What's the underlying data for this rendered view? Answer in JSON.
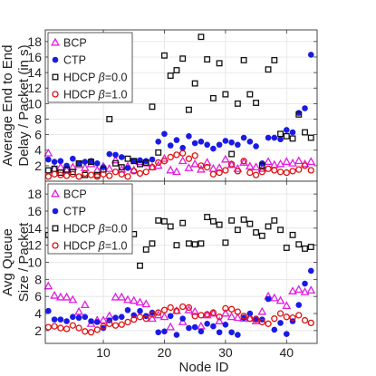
{
  "chart_data": [
    {
      "type": "scatter",
      "ylabel_lines": [
        "Average End to End",
        "Delay / Packet (in s)"
      ],
      "xlabel": "",
      "xlim": [
        0.5,
        45
      ],
      "ylim": [
        0,
        19.5
      ],
      "yticks": [
        2,
        4,
        6,
        8,
        10,
        12,
        14,
        16,
        18
      ],
      "xticks": [
        10,
        20,
        30,
        40
      ],
      "grid": true,
      "legend_position": "top-left",
      "series": [
        {
          "name": "BCP",
          "marker": "triangle",
          "color": "#e020e0",
          "x": [
            1,
            2,
            3,
            4,
            5,
            6,
            7,
            8,
            9,
            10,
            11,
            12,
            13,
            14,
            15,
            16,
            17,
            18,
            19,
            20,
            21,
            22,
            23,
            24,
            25,
            26,
            27,
            28,
            29,
            30,
            31,
            32,
            33,
            34,
            35,
            36,
            37,
            38,
            39,
            40,
            41,
            42,
            43,
            44
          ],
          "y": [
            3.6,
            1.6,
            1.8,
            1.4,
            1.8,
            2.1,
            1.7,
            2.2,
            1.4,
            1.9,
            1.6,
            2.7,
            1.5,
            1.9,
            1.4,
            2.5,
            2.3,
            1.8,
            2.0,
            2.9,
            1.4,
            1.2,
            2.6,
            1.7,
            2.2,
            1.5,
            2.4,
            1.6,
            1.7,
            2.8,
            2.1,
            1.6,
            2.4,
            1.9,
            1.8,
            1.6,
            2.5,
            2.1,
            2.2,
            2.5,
            2.3,
            2.6,
            2.2,
            2.5
          ]
        },
        {
          "name": "CTP",
          "marker": "circle-filled",
          "color": "#1a1ae6",
          "x": [
            1,
            2,
            3,
            4,
            5,
            6,
            7,
            8,
            9,
            10,
            11,
            12,
            13,
            14,
            15,
            16,
            17,
            18,
            19,
            20,
            21,
            22,
            23,
            24,
            25,
            26,
            27,
            28,
            29,
            30,
            31,
            32,
            33,
            34,
            35,
            36,
            37,
            38,
            39,
            40,
            41,
            42,
            43,
            44
          ],
          "y": [
            2.8,
            2.5,
            2.6,
            2.0,
            2.9,
            2.3,
            2.5,
            2.6,
            2.3,
            1.8,
            3.5,
            3.4,
            3.1,
            1.7,
            2.6,
            2.7,
            2.6,
            2.8,
            5.1,
            6.1,
            4.6,
            5.3,
            4.3,
            5.8,
            4.9,
            5.1,
            4.7,
            4.2,
            4.7,
            5.2,
            5.0,
            4.7,
            5.6,
            5.1,
            4.5,
            2.3,
            5.6,
            5.6,
            5.4,
            6.6,
            6.3,
            8.8,
            9.4,
            16.3
          ]
        },
        {
          "name": "HDCP β=0.0",
          "marker": "square-open",
          "color": "#111111",
          "x": [
            1,
            2,
            3,
            4,
            5,
            6,
            7,
            8,
            9,
            10,
            11,
            12,
            13,
            14,
            15,
            16,
            17,
            18,
            19,
            20,
            21,
            22,
            23,
            24,
            25,
            26,
            27,
            28,
            29,
            30,
            31,
            32,
            33,
            34,
            35,
            36,
            37,
            38,
            39,
            40,
            41,
            42,
            43,
            44
          ],
          "y": [
            1.4,
            1.6,
            1.1,
            1.5,
            1.2,
            2.3,
            0.8,
            2.5,
            0.8,
            1.5,
            8.0,
            2.3,
            1.8,
            2.9,
            2.6,
            2.2,
            2.4,
            9.6,
            3.7,
            16.2,
            13.6,
            14.3,
            15.8,
            9.2,
            12.6,
            18.6,
            15.7,
            10.7,
            15.2,
            11.2,
            3.5,
            10.0,
            15.6,
            11.2,
            10.1,
            2.0,
            14.4,
            15.6,
            6.1,
            5.8,
            5.5,
            8.6,
            6.3,
            5.6
          ]
        },
        {
          "name": "HDCP β=1.0",
          "marker": "circle-open",
          "color": "#e01010",
          "x": [
            1,
            2,
            3,
            4,
            5,
            6,
            7,
            8,
            9,
            10,
            11,
            12,
            13,
            14,
            15,
            16,
            17,
            18,
            19,
            20,
            21,
            22,
            23,
            24,
            25,
            26,
            27,
            28,
            29,
            30,
            31,
            32,
            33,
            34,
            35,
            36,
            37,
            38,
            39,
            40,
            41,
            42,
            43,
            44
          ],
          "y": [
            0.6,
            0.9,
            0.8,
            0.7,
            0.9,
            0.6,
            1.0,
            0.8,
            0.6,
            0.9,
            0.7,
            1.2,
            0.9,
            0.6,
            1.3,
            1.0,
            1.2,
            1.8,
            2.4,
            2.6,
            3.1,
            3.4,
            3.6,
            2.9,
            3.3,
            2.0,
            1.8,
            0.9,
            1.1,
            1.4,
            2.2,
            1.3,
            2.6,
            1.1,
            0.8,
            1.2,
            1.6,
            1.4,
            1.2,
            1.1,
            1.3,
            1.5,
            2.0,
            1.4
          ]
        }
      ],
      "legend": [
        "BCP",
        "CTP",
        "HDCP β=0.0",
        "HDCP β=1.0"
      ]
    },
    {
      "type": "scatter",
      "ylabel_lines": [
        "Avg Queue",
        "Size / Packet"
      ],
      "xlabel": "Node ID",
      "xlim": [
        0.5,
        45
      ],
      "ylim": [
        0.5,
        19.5
      ],
      "yticks": [
        2,
        4,
        6,
        8,
        10,
        12,
        14,
        16,
        18
      ],
      "xticks": [
        10,
        20,
        30,
        40
      ],
      "xticklabels": [
        "10",
        "20",
        "30",
        "40"
      ],
      "grid": true,
      "legend_position": "top-left",
      "series": [
        {
          "name": "BCP",
          "marker": "triangle",
          "color": "#e020e0",
          "x": [
            1,
            2,
            3,
            4,
            5,
            6,
            7,
            8,
            9,
            10,
            11,
            12,
            13,
            14,
            15,
            16,
            17,
            18,
            19,
            20,
            21,
            22,
            23,
            24,
            25,
            26,
            27,
            28,
            29,
            30,
            31,
            32,
            33,
            34,
            35,
            36,
            37,
            38,
            39,
            40,
            41,
            42,
            43,
            44
          ],
          "y": [
            7.2,
            6.1,
            5.9,
            5.9,
            5.6,
            4.2,
            5.0,
            2.8,
            3.2,
            3.2,
            3.7,
            5.9,
            5.9,
            5.6,
            5.5,
            5.3,
            5.1,
            3.4,
            3.8,
            3.6,
            2.4,
            4.3,
            3.0,
            4.4,
            4.2,
            2.5,
            3.8,
            4.0,
            3.1,
            4.0,
            3.6,
            3.5,
            3.4,
            3.4,
            3.1,
            4.2,
            6.0,
            5.8,
            5.5,
            4.9,
            6.6,
            6.8,
            6.5,
            6.7
          ]
        },
        {
          "name": "CTP",
          "marker": "circle-filled",
          "color": "#1a1ae6",
          "x": [
            1,
            2,
            3,
            4,
            5,
            6,
            7,
            8,
            9,
            10,
            11,
            12,
            13,
            14,
            15,
            16,
            17,
            18,
            19,
            20,
            21,
            22,
            23,
            24,
            25,
            26,
            27,
            28,
            29,
            30,
            31,
            32,
            33,
            34,
            35,
            36,
            37,
            38,
            39,
            40,
            41,
            42,
            43,
            44
          ],
          "y": [
            4.3,
            3.3,
            3.3,
            3.1,
            3.6,
            3.5,
            3.6,
            3.1,
            3.0,
            2.3,
            3.2,
            3.5,
            3.6,
            4.4,
            3.8,
            4.3,
            3.7,
            4.1,
            1.8,
            1.9,
            3.7,
            1.5,
            3.4,
            2.3,
            2.4,
            1.9,
            2.8,
            2.5,
            1.8,
            2.7,
            1.8,
            1.5,
            3.5,
            4.0,
            3.4,
            3.3,
            5.7,
            2.1,
            2.9,
            1.6,
            3.1,
            5.0,
            7.5,
            9.0
          ]
        },
        {
          "name": "HDCP β=0.0",
          "marker": "square-open",
          "color": "#111111",
          "x": [
            1,
            2,
            3,
            4,
            5,
            6,
            7,
            8,
            9,
            10,
            11,
            12,
            13,
            14,
            15,
            16,
            17,
            18,
            19,
            20,
            21,
            22,
            23,
            24,
            25,
            26,
            27,
            28,
            29,
            30,
            31,
            32,
            33,
            34,
            35,
            36,
            37,
            38,
            39,
            40,
            41,
            42,
            43,
            44
          ],
          "y": [
            13.2,
            12.5,
            12.8,
            12.4,
            14.4,
            14.1,
            14.6,
            14.2,
            13.8,
            13.4,
            14.3,
            14.2,
            13.6,
            13.9,
            13.3,
            9.6,
            11.5,
            12.2,
            14.9,
            14.8,
            14.2,
            12.0,
            14.6,
            12.2,
            12.1,
            12.2,
            15.3,
            14.8,
            14.4,
            12.3,
            14.9,
            13.8,
            15.0,
            14.5,
            13.5,
            13.1,
            14.2,
            14.9,
            13.8,
            11.7,
            13.2,
            12.1,
            11.6,
            11.8
          ]
        },
        {
          "name": "HDCP β=1.0",
          "marker": "circle-open",
          "color": "#e01010",
          "x": [
            1,
            2,
            3,
            4,
            5,
            6,
            7,
            8,
            9,
            10,
            11,
            12,
            13,
            14,
            15,
            16,
            17,
            18,
            19,
            20,
            21,
            22,
            23,
            24,
            25,
            26,
            27,
            28,
            29,
            30,
            31,
            32,
            33,
            34,
            35,
            36,
            37,
            38,
            39,
            40,
            41,
            42,
            43,
            44
          ],
          "y": [
            2.4,
            2.5,
            2.3,
            2.2,
            2.6,
            2.3,
            1.9,
            1.8,
            2.1,
            2.5,
            2.8,
            2.6,
            2.7,
            3.0,
            3.3,
            3.6,
            3.4,
            3.9,
            4.1,
            4.4,
            4.7,
            4.3,
            4.8,
            4.7,
            3.7,
            3.8,
            3.9,
            4.1,
            3.6,
            4.6,
            4.5,
            4.2,
            3.7,
            3.4,
            3.3,
            3.0,
            2.8,
            3.4,
            4.0,
            3.6,
            3.5,
            3.8,
            3.2,
            2.9
          ]
        }
      ],
      "legend": [
        "BCP",
        "CTP",
        "HDCP β=0.0",
        "HDCP β=1.0"
      ]
    }
  ]
}
